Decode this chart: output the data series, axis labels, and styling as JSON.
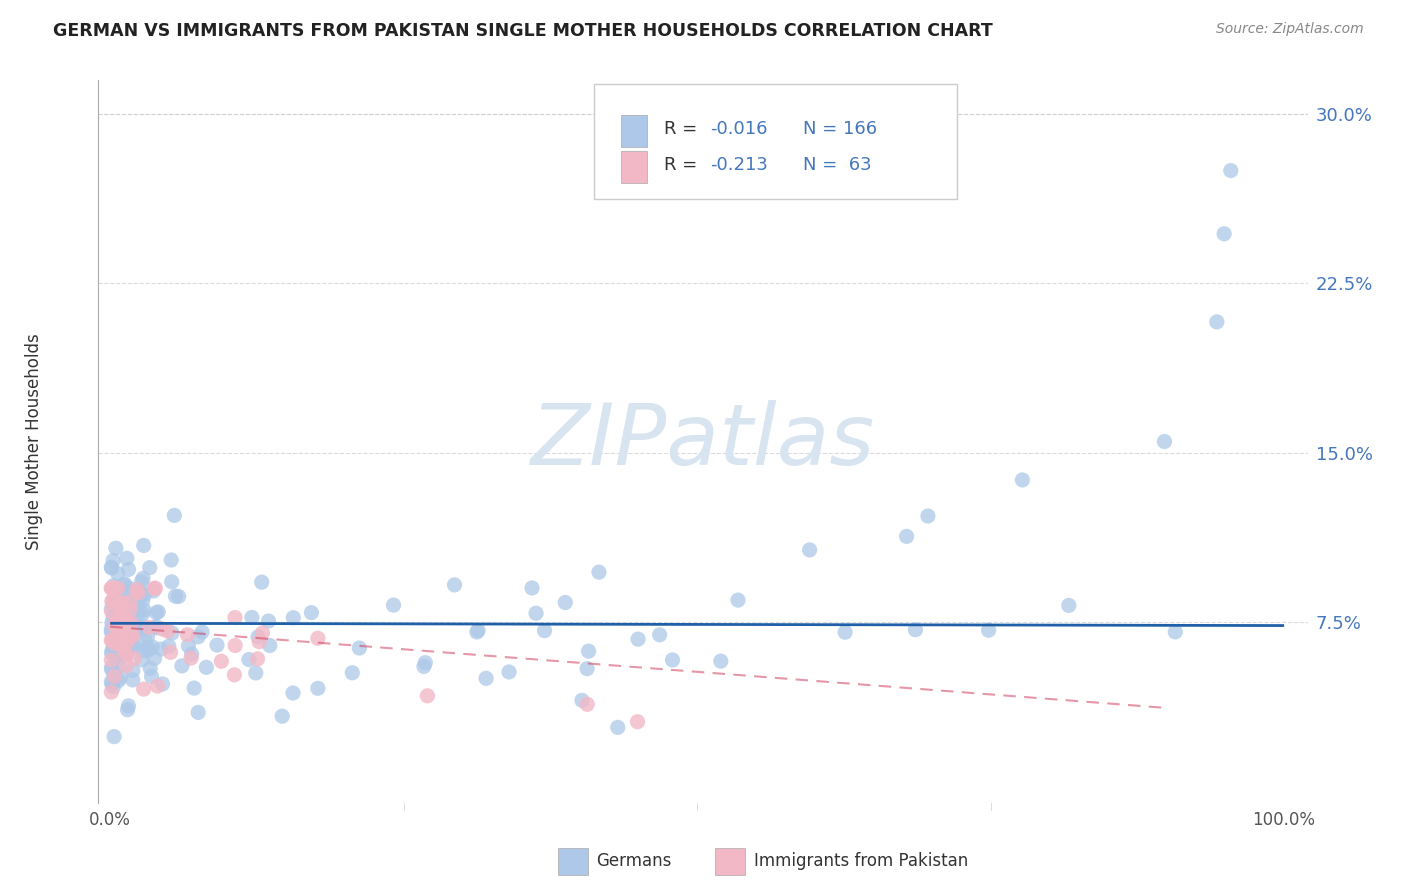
{
  "title": "GERMAN VS IMMIGRANTS FROM PAKISTAN SINGLE MOTHER HOUSEHOLDS CORRELATION CHART",
  "source": "Source: ZipAtlas.com",
  "ylabel": "Single Mother Households",
  "german_color": "#adc8e8",
  "pakistan_color": "#f2b8c6",
  "german_line_color": "#2060a8",
  "pakistan_line_color": "#d04060",
  "tick_color": "#4477bb",
  "watermark_color": "#d8e4f0",
  "background_color": "#ffffff",
  "grid_color": "#cccccc",
  "legend_R1": "R = -0.016",
  "legend_N1": "N = 166",
  "legend_R2": "R = -0.213",
  "legend_N2": "N =  63",
  "german_label": "Germans",
  "pakistan_label": "Immigrants from Pakistan"
}
